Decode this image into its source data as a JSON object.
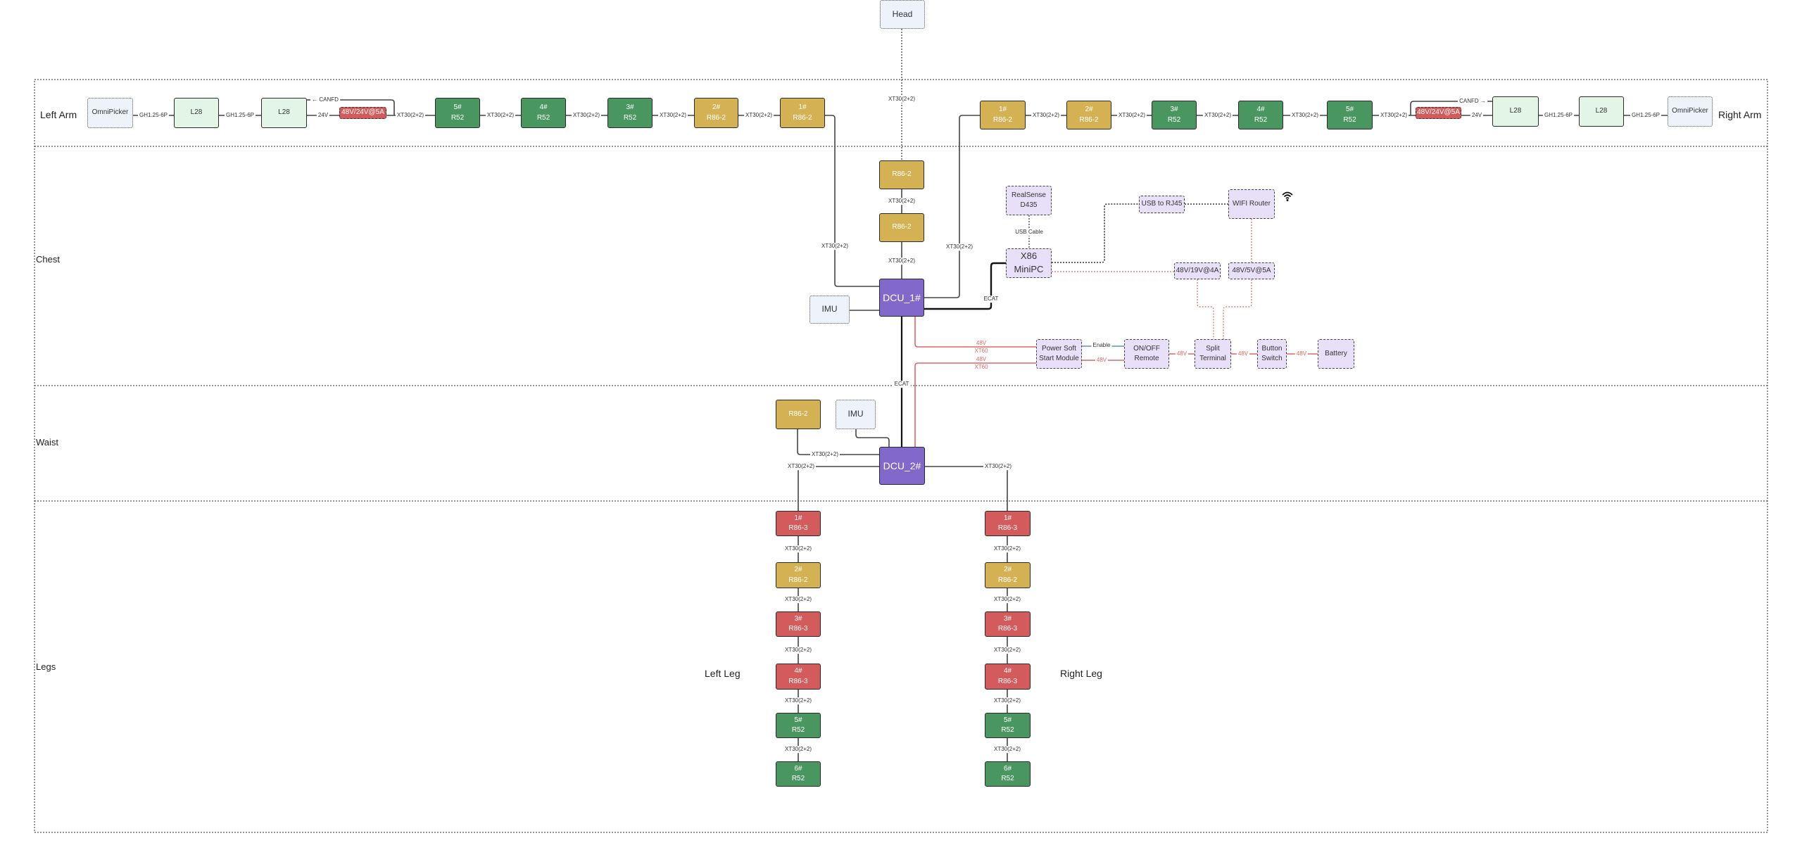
{
  "sections": {
    "left_arm": "Left Arm",
    "right_arm": "Right Arm",
    "chest": "Chest",
    "waist": "Waist",
    "legs": "Legs",
    "left_leg": "Left Leg",
    "right_leg": "Right Leg"
  },
  "colors": {
    "r52": "#4a9660",
    "r86_2": "#d4b254",
    "r86_3": "#d45b5b",
    "dcu": "#8168cb",
    "power_line": "#e06666",
    "enable_line": "#5b8fd6"
  },
  "nodes": {
    "head": {
      "lines": [
        "Head"
      ],
      "kind": "peripheral"
    },
    "la_omni": {
      "lines": [
        "OmniPicker"
      ],
      "kind": "peripheral"
    },
    "la_l28a": {
      "lines": [
        "L28"
      ],
      "kind": "gripper"
    },
    "la_l28b": {
      "lines": [
        "L28"
      ],
      "kind": "gripper"
    },
    "la_psu": {
      "lines": [
        "48V/24V@5A"
      ],
      "kind": "psu"
    },
    "la_m5": {
      "lines": [
        "5#",
        "R52"
      ],
      "kind": "r52"
    },
    "la_m4": {
      "lines": [
        "4#",
        "R52"
      ],
      "kind": "r52"
    },
    "la_m3": {
      "lines": [
        "3#",
        "R52"
      ],
      "kind": "r52"
    },
    "la_m2": {
      "lines": [
        "2#",
        "R86-2"
      ],
      "kind": "r86_2"
    },
    "la_m1": {
      "lines": [
        "1#",
        "R86-2"
      ],
      "kind": "r86_2"
    },
    "ra_m1": {
      "lines": [
        "1#",
        "R86-2"
      ],
      "kind": "r86_2"
    },
    "ra_m2": {
      "lines": [
        "2#",
        "R86-2"
      ],
      "kind": "r86_2"
    },
    "ra_m3": {
      "lines": [
        "3#",
        "R52"
      ],
      "kind": "r52"
    },
    "ra_m4": {
      "lines": [
        "4#",
        "R52"
      ],
      "kind": "r52"
    },
    "ra_m5": {
      "lines": [
        "5#",
        "R52"
      ],
      "kind": "r52"
    },
    "ra_psu": {
      "lines": [
        "48V/24V@5A"
      ],
      "kind": "psu"
    },
    "ra_l28a": {
      "lines": [
        "L28"
      ],
      "kind": "gripper"
    },
    "ra_l28b": {
      "lines": [
        "L28"
      ],
      "kind": "gripper"
    },
    "ra_omni": {
      "lines": [
        "OmniPicker"
      ],
      "kind": "peripheral"
    },
    "neck1": {
      "lines": [
        "R86-2"
      ],
      "kind": "r86_2"
    },
    "neck2": {
      "lines": [
        "R86-2"
      ],
      "kind": "r86_2"
    },
    "dcu1": {
      "lines": [
        "DCU_1#"
      ],
      "kind": "dcu"
    },
    "imu1": {
      "lines": [
        "IMU"
      ],
      "kind": "peripheral"
    },
    "realsense": {
      "lines": [
        "RealSense",
        "D435"
      ],
      "kind": "compute"
    },
    "minipc": {
      "lines": [
        "X86",
        "MiniPC"
      ],
      "kind": "compute"
    },
    "usb_rj45": {
      "lines": [
        "USB to RJ45"
      ],
      "kind": "compute"
    },
    "wifi_router": {
      "lines": [
        "WIFI Router"
      ],
      "kind": "compute"
    },
    "dcdc_19v": {
      "lines": [
        "48V/19V@4A"
      ],
      "kind": "compute"
    },
    "dcdc_5v": {
      "lines": [
        "48V/5V@5A"
      ],
      "kind": "compute"
    },
    "soft_start": {
      "lines": [
        "Power Soft",
        "Start Module"
      ],
      "kind": "compute"
    },
    "onoff": {
      "lines": [
        "ON/OFF",
        "Remote"
      ],
      "kind": "compute"
    },
    "split": {
      "lines": [
        "Split",
        "Terminal"
      ],
      "kind": "compute"
    },
    "button": {
      "lines": [
        "Button",
        "Switch"
      ],
      "kind": "compute"
    },
    "battery": {
      "lines": [
        "Battery"
      ],
      "kind": "compute"
    },
    "waist_motor": {
      "lines": [
        "R86-2"
      ],
      "kind": "r86_2"
    },
    "imu2": {
      "lines": [
        "IMU"
      ],
      "kind": "peripheral"
    },
    "dcu2": {
      "lines": [
        "DCU_2#"
      ],
      "kind": "dcu"
    },
    "ll1": {
      "lines": [
        "1#",
        "R86-3"
      ],
      "kind": "r86_3"
    },
    "ll2": {
      "lines": [
        "2#",
        "R86-2"
      ],
      "kind": "r86_2"
    },
    "ll3": {
      "lines": [
        "3#",
        "R86-3"
      ],
      "kind": "r86_3"
    },
    "ll4": {
      "lines": [
        "4#",
        "R86-3"
      ],
      "kind": "r86_3"
    },
    "ll5": {
      "lines": [
        "5#",
        "R52"
      ],
      "kind": "r52"
    },
    "ll6": {
      "lines": [
        "6#",
        "R52"
      ],
      "kind": "r52"
    },
    "rl1": {
      "lines": [
        "1#",
        "R86-3"
      ],
      "kind": "r86_3"
    },
    "rl2": {
      "lines": [
        "2#",
        "R86-2"
      ],
      "kind": "r86_2"
    },
    "rl3": {
      "lines": [
        "3#",
        "R86-3"
      ],
      "kind": "r86_3"
    },
    "rl4": {
      "lines": [
        "4#",
        "R86-3"
      ],
      "kind": "r86_3"
    },
    "rl5": {
      "lines": [
        "5#",
        "R52"
      ],
      "kind": "r52"
    },
    "rl6": {
      "lines": [
        "6#",
        "R52"
      ],
      "kind": "r52"
    }
  },
  "connectors": {
    "la_gh1": "GH1.25-6P",
    "la_gh2": "GH1.25-6P",
    "la_24v": "24V",
    "la_canfd": "← CANFD",
    "la_xt1": "XT30(2+2)",
    "la_xt2": "XT30(2+2)",
    "la_xt3": "XT30(2+2)",
    "la_xt4": "XT30(2+2)",
    "la_xt5": "XT30(2+2)",
    "ra_xt1": "XT30(2+2)",
    "ra_xt2": "XT30(2+2)",
    "ra_xt3": "XT30(2+2)",
    "ra_xt4": "XT30(2+2)",
    "ra_xt5": "XT30(2+2)",
    "ra_24v": "24V",
    "ra_canfd": "CANFD →",
    "ra_gh1": "GH1.25-6P",
    "ra_gh2": "GH1.25-6P",
    "head_xt": "XT30(2+2)",
    "ch_xt1": "XT30(2+2)",
    "ch_xt2": "XT30(2+2)",
    "ch_larm": "XT30(2+2)",
    "ch_rarm": "XT30(2+2)",
    "ecat1": "ECAT",
    "usb_cable": "USB Cable",
    "ecat2": "ECAT",
    "p1_48v": "48V",
    "p1_xt60": "XT60",
    "p2_48v": "48V",
    "p2_xt60": "XT60",
    "enable": "Enable",
    "p_48v_a": "48V",
    "p_48v_b": "48V",
    "p_48v_c": "48V",
    "p_48v_d": "48V",
    "w_r86": "XT30(2+2)",
    "w_lleg": "XT30(2+2)",
    "w_rleg": "XT30(2+2)",
    "ll_xt1": "XT30(2+2)",
    "ll_xt2": "XT30(2+2)",
    "ll_xt3": "XT30(2+2)",
    "ll_xt4": "XT30(2+2)",
    "ll_xt5": "XT30(2+2)",
    "rl_xt1": "XT30(2+2)",
    "rl_xt2": "XT30(2+2)",
    "rl_xt3": "XT30(2+2)",
    "rl_xt4": "XT30(2+2)",
    "rl_xt5": "XT30(2+2)"
  }
}
